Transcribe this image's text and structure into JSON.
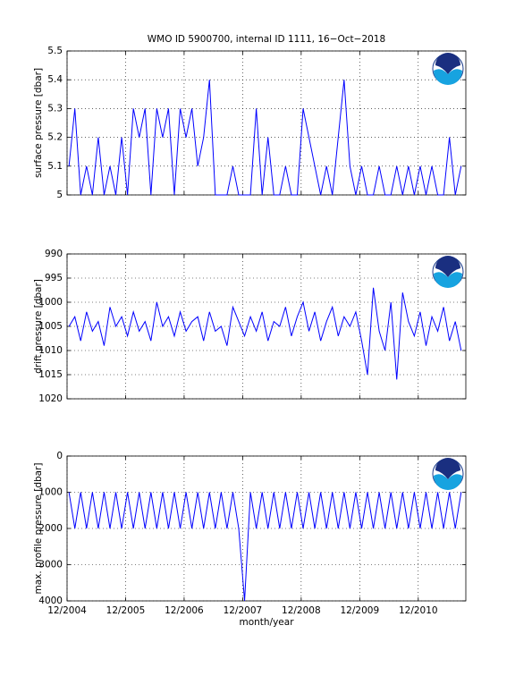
{
  "chart_data": [
    {
      "type": "line",
      "title": "WMO ID 5900700, internal ID 1111, 16−Oct−2018",
      "ylabel": "surface pressure [dbar]",
      "grid": true,
      "reversed": false,
      "color": "#0000ff",
      "xlim": [
        2004.917,
        2011.73
      ],
      "xticks": [
        2004.917,
        2005.917,
        2006.917,
        2007.917,
        2008.917,
        2009.917,
        2010.917
      ],
      "ylim": [
        5,
        5.5
      ],
      "yticks": [
        5,
        5.1,
        5.2,
        5.3,
        5.4,
        5.5
      ],
      "x": [
        2004.95,
        2005.05,
        2005.15,
        2005.25,
        2005.35,
        2005.45,
        2005.55,
        2005.65,
        2005.75,
        2005.85,
        2005.95,
        2006.05,
        2006.15,
        2006.25,
        2006.35,
        2006.45,
        2006.55,
        2006.65,
        2006.75,
        2006.85,
        2006.95,
        2007.05,
        2007.15,
        2007.25,
        2007.35,
        2007.45,
        2007.55,
        2007.65,
        2007.75,
        2007.85,
        2007.95,
        2008.05,
        2008.15,
        2008.25,
        2008.35,
        2008.45,
        2008.55,
        2008.65,
        2008.75,
        2008.85,
        2008.95,
        2009.05,
        2009.15,
        2009.25,
        2009.35,
        2009.45,
        2009.55,
        2009.65,
        2009.75,
        2009.85,
        2009.95,
        2010.05,
        2010.15,
        2010.25,
        2010.35,
        2010.45,
        2010.55,
        2010.65,
        2010.75,
        2010.85,
        2010.95,
        2011.05,
        2011.15,
        2011.25,
        2011.35,
        2011.45,
        2011.55,
        2011.65
      ],
      "values": [
        5.1,
        5.3,
        5,
        5.1,
        5,
        5.2,
        5,
        5.1,
        5,
        5.2,
        5,
        5.3,
        5.2,
        5.3,
        5,
        5.3,
        5.2,
        5.3,
        5,
        5.3,
        5.2,
        5.3,
        5.1,
        5.2,
        5.4,
        5,
        5,
        5,
        5.1,
        5,
        5,
        5,
        5.3,
        5,
        5.2,
        5,
        5,
        5.1,
        5,
        5,
        5.3,
        5.2,
        5.1,
        5,
        5.1,
        5,
        5.2,
        5.4,
        5.1,
        5,
        5.1,
        5,
        5,
        5.1,
        5,
        5,
        5.1,
        5,
        5.1,
        5,
        5.1,
        5,
        5.1,
        5,
        5,
        5.2,
        5,
        5.1
      ]
    },
    {
      "type": "line",
      "ylabel": "drift pressure [dbar]",
      "grid": true,
      "reversed": true,
      "color": "#0000ff",
      "xlim": [
        2004.917,
        2011.73
      ],
      "xticks": [
        2004.917,
        2005.917,
        2006.917,
        2007.917,
        2008.917,
        2009.917,
        2010.917
      ],
      "ylim": [
        990,
        1020
      ],
      "yticks": [
        990,
        995,
        1000,
        1005,
        1010,
        1015,
        1020
      ],
      "x": [
        2004.95,
        2005.05,
        2005.15,
        2005.25,
        2005.35,
        2005.45,
        2005.55,
        2005.65,
        2005.75,
        2005.85,
        2005.95,
        2006.05,
        2006.15,
        2006.25,
        2006.35,
        2006.45,
        2006.55,
        2006.65,
        2006.75,
        2006.85,
        2006.95,
        2007.05,
        2007.15,
        2007.25,
        2007.35,
        2007.45,
        2007.55,
        2007.65,
        2007.75,
        2007.85,
        2007.95,
        2008.05,
        2008.15,
        2008.25,
        2008.35,
        2008.45,
        2008.55,
        2008.65,
        2008.75,
        2008.85,
        2008.95,
        2009.05,
        2009.15,
        2009.25,
        2009.35,
        2009.45,
        2009.55,
        2009.65,
        2009.75,
        2009.85,
        2009.95,
        2010.05,
        2010.15,
        2010.25,
        2010.35,
        2010.45,
        2010.55,
        2010.65,
        2010.75,
        2010.85,
        2010.95,
        2011.05,
        2011.15,
        2011.25,
        2011.35,
        2011.45,
        2011.55,
        2011.65
      ],
      "values": [
        1005,
        1003,
        1008,
        1002,
        1006,
        1004,
        1009,
        1001,
        1005,
        1003,
        1007,
        1002,
        1006,
        1004,
        1008,
        1000,
        1005,
        1003,
        1007,
        1002,
        1006,
        1004,
        1003,
        1008,
        1002,
        1006,
        1005,
        1009,
        1001,
        1004,
        1007,
        1003,
        1006,
        1002,
        1008,
        1004,
        1005,
        1001,
        1007,
        1003,
        1000,
        1006,
        1002,
        1008,
        1004,
        1001,
        1007,
        1003,
        1005,
        1002,
        1008,
        1015,
        997,
        1006,
        1010,
        1000,
        1016,
        998,
        1004,
        1007,
        1002,
        1009,
        1003,
        1006,
        1001,
        1008,
        1004,
        1010
      ]
    },
    {
      "type": "line",
      "ylabel": "max. profile pressure [dbar]",
      "xlabel": "month/year",
      "grid": true,
      "reversed": true,
      "color": "#0000ff",
      "xlim": [
        2004.917,
        2011.73
      ],
      "xticks": [
        {
          "value": 2004.917,
          "label": "12/2004"
        },
        {
          "value": 2005.917,
          "label": "12/2005"
        },
        {
          "value": 2006.917,
          "label": "12/2006"
        },
        {
          "value": 2007.917,
          "label": "12/2007"
        },
        {
          "value": 2008.917,
          "label": "12/2008"
        },
        {
          "value": 2009.917,
          "label": "12/2009"
        },
        {
          "value": 2010.917,
          "label": "12/2010"
        }
      ],
      "ylim": [
        0,
        4000
      ],
      "yticks": [
        0,
        1000,
        2000,
        3000,
        4000
      ],
      "x": [
        2004.95,
        2005.05,
        2005.15,
        2005.25,
        2005.35,
        2005.45,
        2005.55,
        2005.65,
        2005.75,
        2005.85,
        2005.95,
        2006.05,
        2006.15,
        2006.25,
        2006.35,
        2006.45,
        2006.55,
        2006.65,
        2006.75,
        2006.85,
        2006.95,
        2007.05,
        2007.15,
        2007.25,
        2007.35,
        2007.45,
        2007.55,
        2007.65,
        2007.75,
        2007.85,
        2007.95,
        2008.05,
        2008.15,
        2008.25,
        2008.35,
        2008.45,
        2008.55,
        2008.65,
        2008.75,
        2008.85,
        2008.95,
        2009.05,
        2009.15,
        2009.25,
        2009.35,
        2009.45,
        2009.55,
        2009.65,
        2009.75,
        2009.85,
        2009.95,
        2010.05,
        2010.15,
        2010.25,
        2010.35,
        2010.45,
        2010.55,
        2010.65,
        2010.75,
        2010.85,
        2010.95,
        2011.05,
        2011.15,
        2011.25,
        2011.35,
        2011.45,
        2011.55,
        2011.65
      ],
      "values": [
        1000,
        2000,
        1000,
        2000,
        1000,
        2000,
        1000,
        2000,
        1000,
        2000,
        1000,
        2000,
        1000,
        2000,
        1000,
        2000,
        1000,
        2000,
        1000,
        2000,
        1000,
        2000,
        1000,
        2000,
        1000,
        2000,
        1000,
        2000,
        1000,
        2000,
        4000,
        1000,
        2000,
        1000,
        2000,
        1000,
        2000,
        1000,
        2000,
        1000,
        2000,
        1000,
        2000,
        1000,
        2000,
        1000,
        2000,
        1000,
        2000,
        1000,
        2000,
        1000,
        2000,
        1000,
        2000,
        1000,
        2000,
        1000,
        2000,
        1000,
        2000,
        1000,
        2000,
        1000,
        2000,
        1000,
        2000,
        1000
      ]
    }
  ]
}
